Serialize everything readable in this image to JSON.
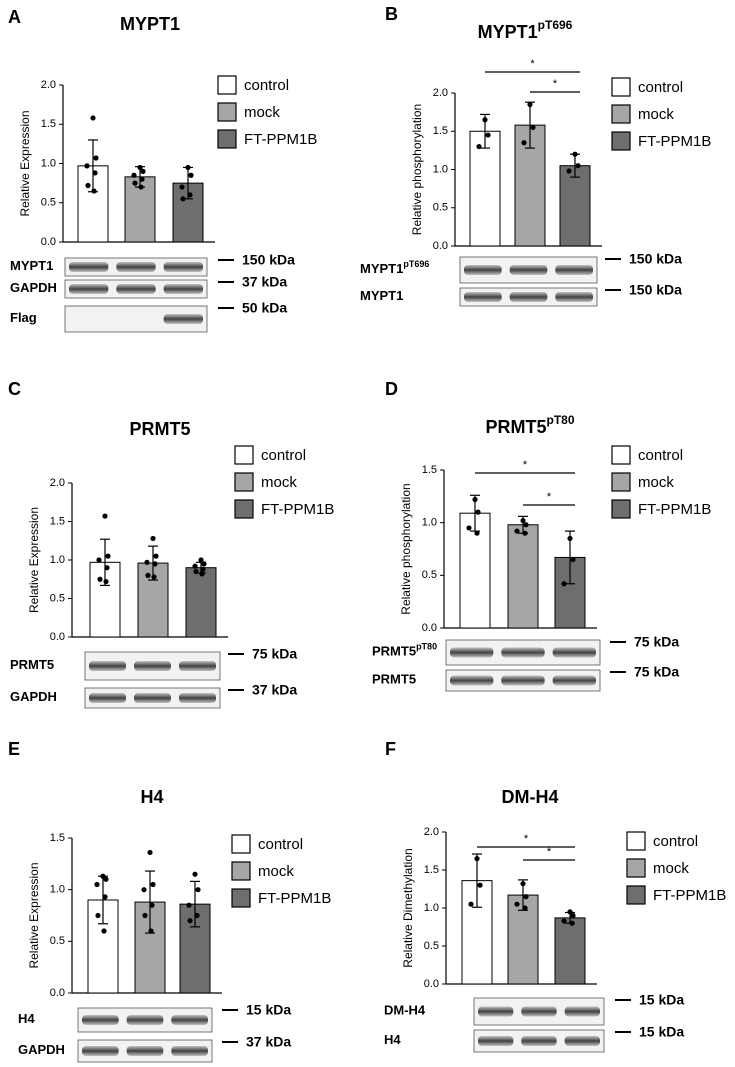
{
  "chart_data": [
    {
      "type": "bar",
      "panel": "A",
      "title": "MYPT1",
      "ylabel": "Relative Expression",
      "ylim": [
        0,
        2
      ],
      "yticks": [
        {
          "value": 0,
          "label": "0.0"
        },
        {
          "value": 0.5,
          "label": "0.5"
        },
        {
          "value": 1,
          "label": "1.0"
        },
        {
          "value": 1.5,
          "label": "1.5"
        },
        {
          "value": 2,
          "label": "2.0"
        }
      ],
      "series": [
        {
          "name": "control",
          "color": "#ffffff",
          "values": [
            0.97
          ],
          "errors": [
            0.33
          ],
          "points": [
            1.58,
            1.07,
            0.97,
            0.88,
            0.72,
            0.65
          ]
        },
        {
          "name": "mock",
          "color": "#a6a6a6",
          "values": [
            0.83
          ],
          "errors": [
            0.13
          ],
          "points": [
            0.95,
            0.9,
            0.85,
            0.8,
            0.75,
            0.7
          ]
        },
        {
          "name": "FT-PPM1B",
          "color": "#6e6e6e",
          "values": [
            0.75
          ],
          "errors": [
            0.2
          ],
          "points": [
            0.95,
            0.85,
            0.7,
            0.6,
            0.55
          ]
        }
      ],
      "significance": [],
      "blots": [
        {
          "label": "MYPT1",
          "kda": "150 kDa"
        },
        {
          "label": "GAPDH",
          "kda": "37 kDa"
        },
        {
          "label": "Flag",
          "kda": "50 kDa"
        }
      ]
    },
    {
      "type": "bar",
      "panel": "B",
      "title": "MYPT1",
      "title_sup": "pT696",
      "ylabel": "Relative phosphorylation",
      "ylim": [
        0,
        2
      ],
      "yticks": [
        {
          "value": 0,
          "label": "0.0"
        },
        {
          "value": 0.5,
          "label": "0.5"
        },
        {
          "value": 1,
          "label": "1.0"
        },
        {
          "value": 1.5,
          "label": "1.5"
        },
        {
          "value": 2,
          "label": "2.0"
        }
      ],
      "series": [
        {
          "name": "control",
          "color": "#ffffff",
          "values": [
            1.5
          ],
          "errors": [
            0.22
          ],
          "points": [
            1.65,
            1.45,
            1.3
          ]
        },
        {
          "name": "mock",
          "color": "#a6a6a6",
          "values": [
            1.58
          ],
          "errors": [
            0.3
          ],
          "points": [
            1.85,
            1.55,
            1.35
          ]
        },
        {
          "name": "FT-PPM1B",
          "color": "#6e6e6e",
          "values": [
            1.05
          ],
          "errors": [
            0.15
          ],
          "points": [
            1.2,
            1.05,
            0.98
          ]
        }
      ],
      "significance": [
        "*",
        "*"
      ],
      "blots": [
        {
          "label": "MYPT1",
          "sup": "pT696",
          "kda": "150 kDa"
        },
        {
          "label": "MYPT1",
          "kda": "150 kDa"
        }
      ]
    },
    {
      "type": "bar",
      "panel": "C",
      "title": "PRMT5",
      "ylabel": "Relative Expression",
      "ylim": [
        0,
        2
      ],
      "yticks": [
        {
          "value": 0,
          "label": "0.0"
        },
        {
          "value": 0.5,
          "label": "0.5"
        },
        {
          "value": 1,
          "label": "1.0"
        },
        {
          "value": 1.5,
          "label": "1.5"
        },
        {
          "value": 2,
          "label": "2.0"
        }
      ],
      "series": [
        {
          "name": "control",
          "color": "#ffffff",
          "values": [
            0.97
          ],
          "errors": [
            0.3
          ],
          "points": [
            1.57,
            1.05,
            1.0,
            0.9,
            0.75,
            0.72
          ]
        },
        {
          "name": "mock",
          "color": "#a6a6a6",
          "values": [
            0.96
          ],
          "errors": [
            0.22
          ],
          "points": [
            1.28,
            1.05,
            0.97,
            0.95,
            0.8,
            0.78
          ]
        },
        {
          "name": "FT-PPM1B",
          "color": "#6e6e6e",
          "values": [
            0.9
          ],
          "errors": [
            0.07
          ],
          "points": [
            1.0,
            0.95,
            0.92,
            0.88,
            0.85,
            0.82
          ]
        }
      ],
      "significance": [],
      "blots": [
        {
          "label": "PRMT5",
          "kda": "75 kDa"
        },
        {
          "label": "GAPDH",
          "kda": "37 kDa"
        }
      ]
    },
    {
      "type": "bar",
      "panel": "D",
      "title": "PRMT5",
      "title_sup": "pT80",
      "ylabel": "Relative phosphorylation",
      "ylim": [
        0,
        1.5
      ],
      "yticks": [
        {
          "value": 0,
          "label": "0.0"
        },
        {
          "value": 0.5,
          "label": "0.5"
        },
        {
          "value": 1,
          "label": "1.0"
        },
        {
          "value": 1.5,
          "label": "1.5"
        }
      ],
      "series": [
        {
          "name": "control",
          "color": "#ffffff",
          "values": [
            1.09
          ],
          "errors": [
            0.17
          ],
          "points": [
            1.22,
            1.1,
            0.95,
            0.9
          ]
        },
        {
          "name": "mock",
          "color": "#a6a6a6",
          "values": [
            0.98
          ],
          "errors": [
            0.08
          ],
          "points": [
            1.02,
            0.98,
            0.92,
            0.9
          ]
        },
        {
          "name": "FT-PPM1B",
          "color": "#6e6e6e",
          "values": [
            0.67
          ],
          "errors": [
            0.25
          ],
          "points": [
            0.85,
            0.65,
            0.42
          ]
        }
      ],
      "significance": [
        "*",
        "*"
      ],
      "blots": [
        {
          "label": "PRMT5",
          "sup": "pT80",
          "kda": "75 kDa"
        },
        {
          "label": "PRMT5",
          "kda": "75 kDa"
        }
      ]
    },
    {
      "type": "bar",
      "panel": "E",
      "title": "H4",
      "ylabel": "Relative Expression",
      "ylim": [
        0,
        1.5
      ],
      "yticks": [
        {
          "value": 0,
          "label": "0.0"
        },
        {
          "value": 0.5,
          "label": "0.5"
        },
        {
          "value": 1,
          "label": "1.0"
        },
        {
          "value": 1.5,
          "label": "1.5"
        }
      ],
      "series": [
        {
          "name": "control",
          "color": "#ffffff",
          "values": [
            0.9
          ],
          "errors": [
            0.23
          ],
          "points": [
            1.13,
            1.1,
            1.05,
            0.93,
            0.75,
            0.6
          ]
        },
        {
          "name": "mock",
          "color": "#a6a6a6",
          "values": [
            0.88
          ],
          "errors": [
            0.3
          ],
          "points": [
            1.36,
            1.05,
            1.0,
            0.85,
            0.75,
            0.6
          ]
        },
        {
          "name": "FT-PPM1B",
          "color": "#6e6e6e",
          "values": [
            0.86
          ],
          "errors": [
            0.22
          ],
          "points": [
            1.15,
            1.0,
            0.85,
            0.75,
            0.7
          ]
        }
      ],
      "significance": [],
      "blots": [
        {
          "label": "H4",
          "kda": "15 kDa"
        },
        {
          "label": "GAPDH",
          "kda": "37 kDa"
        }
      ]
    },
    {
      "type": "bar",
      "panel": "F",
      "title": "DM-H4",
      "ylabel": "Relative Dimethylation",
      "ylim": [
        0,
        2
      ],
      "yticks": [
        {
          "value": 0,
          "label": "0.0"
        },
        {
          "value": 0.5,
          "label": "0.5"
        },
        {
          "value": 1,
          "label": "1.0"
        },
        {
          "value": 1.5,
          "label": "1.5"
        },
        {
          "value": 2,
          "label": "2.0"
        }
      ],
      "series": [
        {
          "name": "control",
          "color": "#ffffff",
          "values": [
            1.36
          ],
          "errors": [
            0.35
          ],
          "points": [
            1.65,
            1.3,
            1.05
          ]
        },
        {
          "name": "mock",
          "color": "#a6a6a6",
          "values": [
            1.17
          ],
          "errors": [
            0.2
          ],
          "points": [
            1.32,
            1.15,
            1.05,
            1.0
          ]
        },
        {
          "name": "FT-PPM1B",
          "color": "#6e6e6e",
          "values": [
            0.87
          ],
          "errors": [
            0.07
          ],
          "points": [
            0.95,
            0.9,
            0.83,
            0.8
          ]
        }
      ],
      "significance": [
        "*",
        "*"
      ],
      "blots": [
        {
          "label": "DM-H4",
          "kda": "15 kDa"
        },
        {
          "label": "H4",
          "kda": "15 kDa"
        }
      ]
    }
  ]
}
